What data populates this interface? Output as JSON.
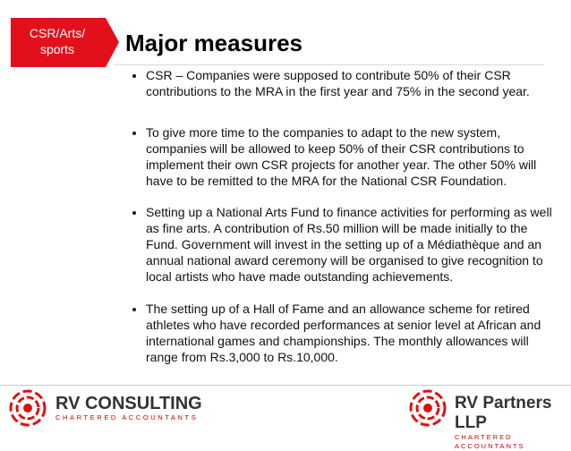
{
  "header": {
    "tab_label": [
      "CSR/Arts/",
      "sports"
    ],
    "title": "Major measures"
  },
  "bullets": [
    "CSR – Companies were supposed to contribute 50% of their CSR contributions to the MRA in the first year and 75% in the second year.",
    "To give more time to the companies to adapt to the new system, companies will be allowed to keep 50% of their CSR contributions to implement their own CSR projects for another year. The other 50% will have to be remitted to the MRA for the National CSR Foundation.",
    "Setting up a National Arts Fund to finance activities for performing as well as fine arts. A contribution of Rs.50 million will be made initially to the Fund. Government will invest in the setting up of a Médiathèque and an annual national award ceremony will be organised to give recognition to local artists who have made outstanding achievements.",
    "The setting up of a Hall of Fame and an allowance scheme for retired athletes who have recorded performances at senior level at African and international games and championships. The monthly allowances will range from Rs.3,000 to Rs.10,000."
  ],
  "footer": {
    "left_logo": {
      "name": "RV CONSULTING",
      "subtitle": "CHARTERED ACCOUNTANTS"
    },
    "right_logo": {
      "name": "RV Partners LLP",
      "subtitle": "CHARTERED ACCOUNTANTS"
    }
  }
}
